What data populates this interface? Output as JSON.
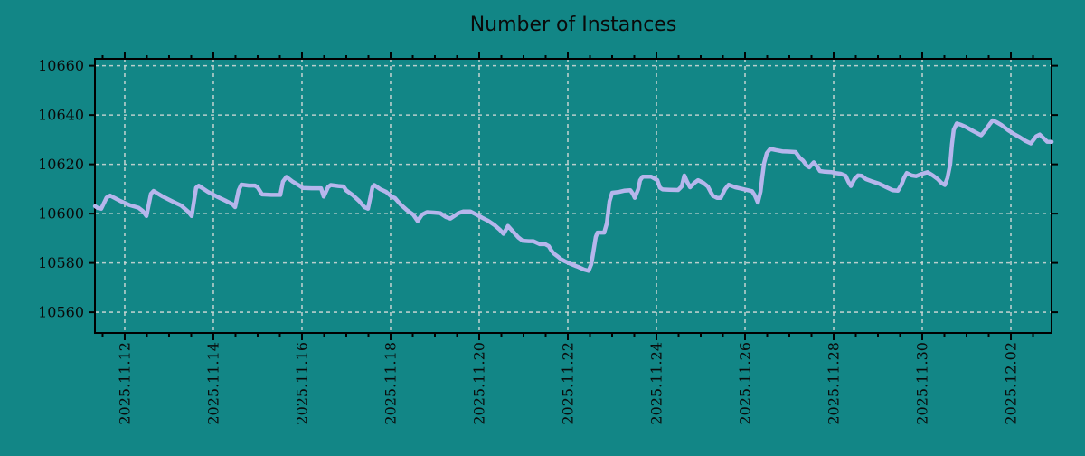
{
  "chart_data": {
    "type": "line",
    "title": "Number of Instances",
    "legend": "none",
    "x_axis": {
      "unit": "days since 2025-11-11 00:00",
      "range": [
        0.327,
        21.918
      ],
      "minor_tick_step_days": 0.5,
      "major_ticks": [
        {
          "day": 1,
          "label": "2025.11.12"
        },
        {
          "day": 3,
          "label": "2025.11.14"
        },
        {
          "day": 5,
          "label": "2025.11.16"
        },
        {
          "day": 7,
          "label": "2025.11.18"
        },
        {
          "day": 9,
          "label": "2025.11.20"
        },
        {
          "day": 11,
          "label": "2025.11.22"
        },
        {
          "day": 13,
          "label": "2025.11.24"
        },
        {
          "day": 15,
          "label": "2025.11.26"
        },
        {
          "day": 17,
          "label": "2025.11.28"
        },
        {
          "day": 19,
          "label": "2025.11.30"
        },
        {
          "day": 21,
          "label": "2025.12.02"
        }
      ]
    },
    "y_axis": {
      "range": [
        10551.6,
        10662.8
      ],
      "ticks": [
        10660,
        10640,
        10620,
        10600,
        10580,
        10560
      ]
    },
    "grid": {
      "show": true,
      "style": "dashed",
      "color": "#ccd6d4"
    },
    "colors": {
      "background": "#128686",
      "frame": "#000000",
      "line": "#b6b6ec",
      "text": "#0a0a0a"
    },
    "series": [
      {
        "name": "instances",
        "points": [
          [
            0.33,
            10603
          ],
          [
            0.39,
            10602.3
          ],
          [
            0.47,
            10602
          ],
          [
            0.59,
            10606.5
          ],
          [
            0.67,
            10607.3
          ],
          [
            0.9,
            10605.1
          ],
          [
            1.1,
            10603.5
          ],
          [
            1.31,
            10602.4
          ],
          [
            1.41,
            10601
          ],
          [
            1.49,
            10599
          ],
          [
            1.59,
            10608
          ],
          [
            1.65,
            10609.2
          ],
          [
            1.86,
            10606.9
          ],
          [
            2.06,
            10605.1
          ],
          [
            2.27,
            10603.3
          ],
          [
            2.43,
            10600.8
          ],
          [
            2.51,
            10599
          ],
          [
            2.61,
            10610.5
          ],
          [
            2.67,
            10611.3
          ],
          [
            2.88,
            10608.8
          ],
          [
            3.08,
            10606.9
          ],
          [
            3.29,
            10605.1
          ],
          [
            3.43,
            10603.8
          ],
          [
            3.49,
            10602.6
          ],
          [
            3.57,
            10609.4
          ],
          [
            3.63,
            10611.8
          ],
          [
            3.8,
            10611.4
          ],
          [
            3.94,
            10611.4
          ],
          [
            4.0,
            10610.6
          ],
          [
            4.1,
            10607.8
          ],
          [
            4.31,
            10607.6
          ],
          [
            4.51,
            10607.6
          ],
          [
            4.57,
            10613
          ],
          [
            4.65,
            10614.9
          ],
          [
            4.78,
            10613.1
          ],
          [
            4.92,
            10611.6
          ],
          [
            5.02,
            10610.4
          ],
          [
            5.22,
            10610.3
          ],
          [
            5.43,
            10610.3
          ],
          [
            5.49,
            10606.9
          ],
          [
            5.59,
            10610.8
          ],
          [
            5.65,
            10611.6
          ],
          [
            5.82,
            10611.2
          ],
          [
            5.94,
            10611
          ],
          [
            6.0,
            10609.4
          ],
          [
            6.14,
            10607.6
          ],
          [
            6.29,
            10605.1
          ],
          [
            6.41,
            10602.6
          ],
          [
            6.49,
            10602
          ],
          [
            6.59,
            10610.6
          ],
          [
            6.63,
            10611.6
          ],
          [
            6.76,
            10610
          ],
          [
            6.9,
            10608.8
          ],
          [
            7.02,
            10606.9
          ],
          [
            7.1,
            10606.3
          ],
          [
            7.22,
            10603.8
          ],
          [
            7.37,
            10601.4
          ],
          [
            7.51,
            10599.6
          ],
          [
            7.61,
            10597
          ],
          [
            7.71,
            10599.6
          ],
          [
            7.82,
            10600.6
          ],
          [
            7.98,
            10600.4
          ],
          [
            8.12,
            10600.2
          ],
          [
            8.24,
            10598.7
          ],
          [
            8.35,
            10598
          ],
          [
            8.53,
            10600.2
          ],
          [
            8.65,
            10600.9
          ],
          [
            8.8,
            10600.9
          ],
          [
            8.94,
            10599.6
          ],
          [
            9.06,
            10598.4
          ],
          [
            9.2,
            10597.1
          ],
          [
            9.35,
            10595.3
          ],
          [
            9.47,
            10593.4
          ],
          [
            9.55,
            10591.8
          ],
          [
            9.65,
            10595
          ],
          [
            9.76,
            10592.8
          ],
          [
            9.88,
            10590.4
          ],
          [
            9.98,
            10589
          ],
          [
            10.12,
            10588.8
          ],
          [
            10.22,
            10588.8
          ],
          [
            10.37,
            10587.6
          ],
          [
            10.49,
            10587.6
          ],
          [
            10.57,
            10586.8
          ],
          [
            10.63,
            10585
          ],
          [
            10.69,
            10583.7
          ],
          [
            10.78,
            10582.5
          ],
          [
            10.84,
            10581.6
          ],
          [
            10.94,
            10580.6
          ],
          [
            11.04,
            10579.8
          ],
          [
            11.14,
            10579
          ],
          [
            11.24,
            10578.3
          ],
          [
            11.37,
            10577.3
          ],
          [
            11.47,
            10576.8
          ],
          [
            11.53,
            10579.5
          ],
          [
            11.59,
            10586
          ],
          [
            11.63,
            10590.5
          ],
          [
            11.67,
            10592.3
          ],
          [
            11.82,
            10592.3
          ],
          [
            11.88,
            10596
          ],
          [
            11.94,
            10605
          ],
          [
            12.0,
            10608.5
          ],
          [
            12.16,
            10608.8
          ],
          [
            12.27,
            10609.3
          ],
          [
            12.41,
            10609.5
          ],
          [
            12.47,
            10608
          ],
          [
            12.51,
            10606.4
          ],
          [
            12.59,
            10610
          ],
          [
            12.63,
            10613.5
          ],
          [
            12.69,
            10615
          ],
          [
            12.88,
            10615
          ],
          [
            12.98,
            10614
          ],
          [
            13.02,
            10613.6
          ],
          [
            13.08,
            10610.5
          ],
          [
            13.14,
            10609.8
          ],
          [
            13.29,
            10609.7
          ],
          [
            13.49,
            10609.6
          ],
          [
            13.57,
            10611
          ],
          [
            13.63,
            10615.5
          ],
          [
            13.69,
            10613
          ],
          [
            13.76,
            10610.7
          ],
          [
            13.86,
            10612.5
          ],
          [
            13.94,
            10613.6
          ],
          [
            14.06,
            10612.5
          ],
          [
            14.16,
            10611
          ],
          [
            14.27,
            10607.3
          ],
          [
            14.37,
            10606.4
          ],
          [
            14.45,
            10606.4
          ],
          [
            14.55,
            10610
          ],
          [
            14.63,
            10611.7
          ],
          [
            14.78,
            10610.7
          ],
          [
            14.92,
            10610.1
          ],
          [
            15.06,
            10609.5
          ],
          [
            15.16,
            10609.1
          ],
          [
            15.22,
            10607.4
          ],
          [
            15.29,
            10604.5
          ],
          [
            15.35,
            10609
          ],
          [
            15.39,
            10615
          ],
          [
            15.43,
            10620.5
          ],
          [
            15.49,
            10624.5
          ],
          [
            15.57,
            10626.3
          ],
          [
            15.69,
            10625.8
          ],
          [
            15.84,
            10625.3
          ],
          [
            15.98,
            10625.2
          ],
          [
            16.14,
            10625
          ],
          [
            16.24,
            10622.5
          ],
          [
            16.31,
            10621.5
          ],
          [
            16.39,
            10619.5
          ],
          [
            16.45,
            10618.8
          ],
          [
            16.55,
            10620.8
          ],
          [
            16.63,
            10619
          ],
          [
            16.69,
            10617.3
          ],
          [
            16.8,
            10617
          ],
          [
            16.96,
            10616.8
          ],
          [
            17.06,
            10616.4
          ],
          [
            17.16,
            10616.2
          ],
          [
            17.27,
            10615.4
          ],
          [
            17.33,
            10613
          ],
          [
            17.39,
            10611.2
          ],
          [
            17.47,
            10614
          ],
          [
            17.55,
            10615.5
          ],
          [
            17.63,
            10615.4
          ],
          [
            17.73,
            10614
          ],
          [
            17.88,
            10613
          ],
          [
            18.02,
            10612.2
          ],
          [
            18.18,
            10610.8
          ],
          [
            18.33,
            10609.5
          ],
          [
            18.45,
            10609.3
          ],
          [
            18.53,
            10611.8
          ],
          [
            18.59,
            10614.5
          ],
          [
            18.65,
            10616.5
          ],
          [
            18.76,
            10615.5
          ],
          [
            18.86,
            10615.2
          ],
          [
            19.0,
            10616.2
          ],
          [
            19.12,
            10616.8
          ],
          [
            19.24,
            10615.5
          ],
          [
            19.35,
            10614
          ],
          [
            19.43,
            10612.5
          ],
          [
            19.51,
            10611.6
          ],
          [
            19.57,
            10614.5
          ],
          [
            19.63,
            10620
          ],
          [
            19.67,
            10628
          ],
          [
            19.71,
            10634
          ],
          [
            19.78,
            10636.6
          ],
          [
            19.88,
            10636
          ],
          [
            19.98,
            10635.2
          ],
          [
            20.1,
            10634
          ],
          [
            20.22,
            10632.8
          ],
          [
            20.33,
            10631.8
          ],
          [
            20.43,
            10634
          ],
          [
            20.53,
            10636.5
          ],
          [
            20.59,
            10637.8
          ],
          [
            20.69,
            10637
          ],
          [
            20.8,
            10635.8
          ],
          [
            20.94,
            10633.8
          ],
          [
            21.08,
            10632.2
          ],
          [
            21.2,
            10631
          ],
          [
            21.33,
            10629.5
          ],
          [
            21.45,
            10628.5
          ],
          [
            21.57,
            10631.3
          ],
          [
            21.65,
            10632.1
          ],
          [
            21.76,
            10630.2
          ],
          [
            21.82,
            10629.2
          ],
          [
            21.92,
            10629.1
          ]
        ]
      }
    ]
  }
}
